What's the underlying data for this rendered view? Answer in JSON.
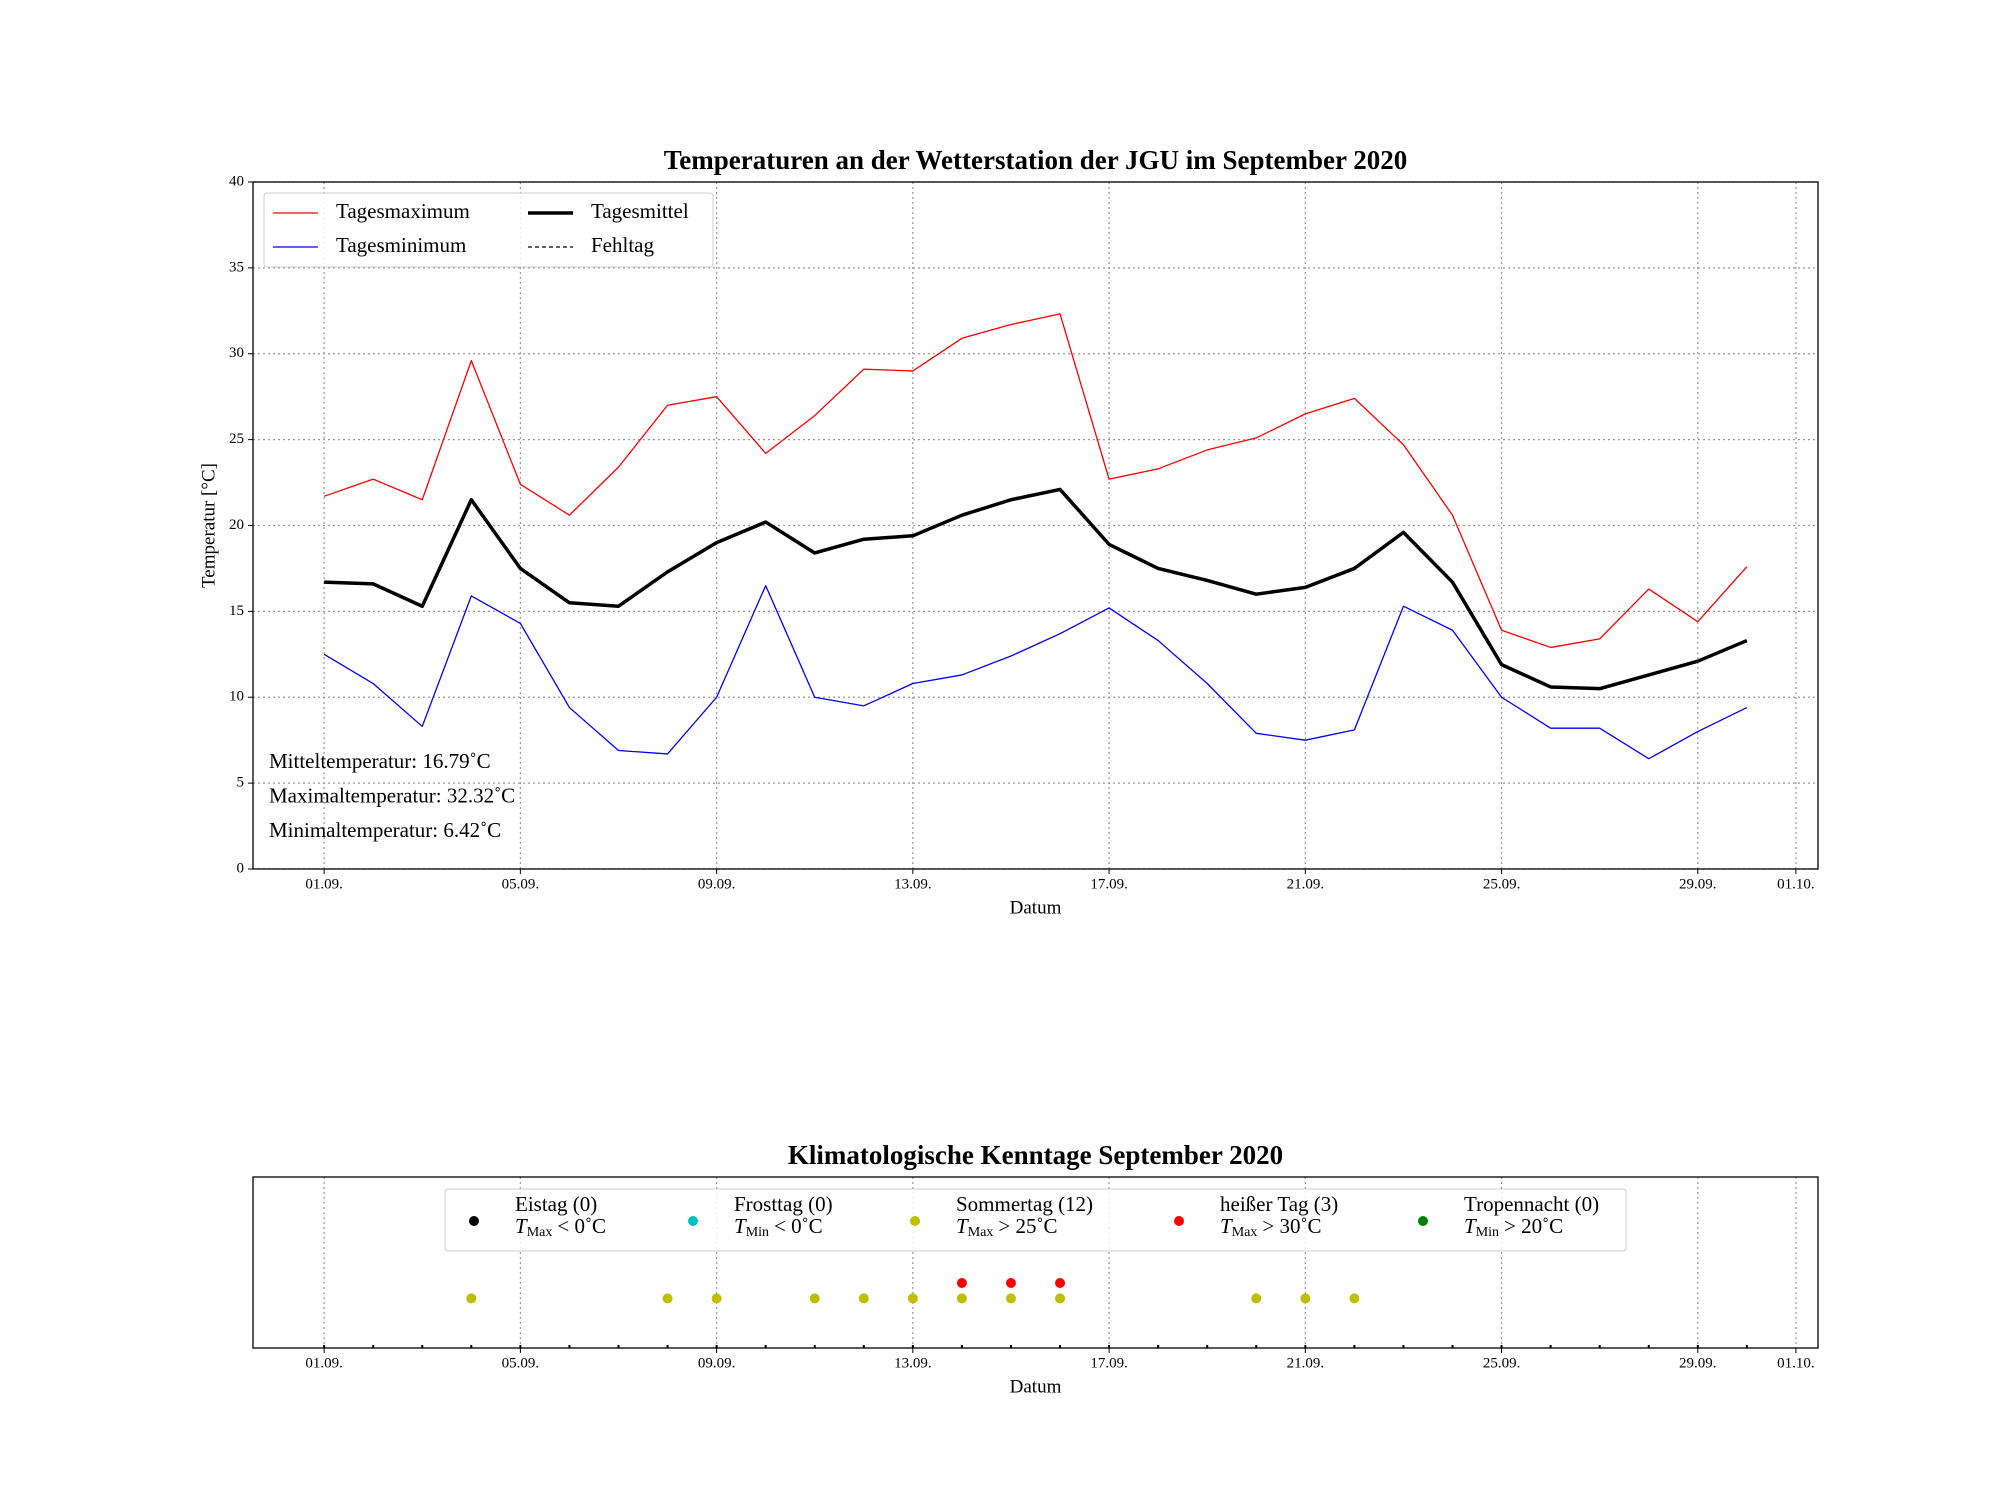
{
  "chart_data": [
    {
      "type": "line",
      "title": "Temperaturen an der Wetterstation der JGU im September 2020",
      "xlabel": "Datum",
      "ylabel": "Temperatur [°C]",
      "x": [
        1,
        2,
        3,
        4,
        5,
        6,
        7,
        8,
        9,
        10,
        11,
        12,
        13,
        14,
        15,
        16,
        17,
        18,
        19,
        20,
        21,
        22,
        23,
        24,
        25,
        26,
        27,
        28,
        29,
        30
      ],
      "series": [
        {
          "name": "Tagesmaximum",
          "color": "#ff0000",
          "width": 1.3,
          "values": [
            21.7,
            22.7,
            21.5,
            29.6,
            22.4,
            20.6,
            23.4,
            27.0,
            27.5,
            24.2,
            26.4,
            29.1,
            29.0,
            30.9,
            31.7,
            32.32,
            22.7,
            23.3,
            24.4,
            25.1,
            26.5,
            27.4,
            24.7,
            20.6,
            13.9,
            12.9,
            13.4,
            16.3,
            14.4,
            17.6
          ]
        },
        {
          "name": "Tagesminimum",
          "color": "#0000ff",
          "width": 1.3,
          "values": [
            12.5,
            10.8,
            8.3,
            15.9,
            14.3,
            9.4,
            6.9,
            6.7,
            10.0,
            16.5,
            10.0,
            9.5,
            10.8,
            11.3,
            12.4,
            13.7,
            15.2,
            13.3,
            10.8,
            7.9,
            7.5,
            8.1,
            15.3,
            13.9,
            10.0,
            8.2,
            8.2,
            6.42,
            8.0,
            9.4
          ]
        },
        {
          "name": "Tagesmittel",
          "color": "#000000",
          "width": 3.5,
          "values": [
            16.7,
            16.6,
            15.3,
            21.5,
            17.5,
            15.5,
            15.3,
            17.3,
            19.0,
            20.2,
            18.4,
            19.2,
            19.4,
            20.6,
            21.5,
            22.1,
            18.9,
            17.5,
            16.8,
            16.0,
            16.4,
            17.5,
            19.6,
            16.7,
            11.9,
            10.6,
            10.5,
            11.3,
            12.1,
            13.3
          ]
        }
      ],
      "legend_extra": [
        {
          "name": "Fehltag",
          "color": "#000000",
          "dash": "4,3"
        }
      ],
      "legend": "upper left",
      "annotations": [
        "Mitteltemperatur: 16.79˚C",
        "Maximaltemperatur: 32.32˚C",
        "Minimaltemperatur: 6.42˚C"
      ],
      "xlim": [
        -0.45,
        31.45
      ],
      "xticks": [
        {
          "value": 1,
          "label": "01.09."
        },
        {
          "value": 5,
          "label": "05.09."
        },
        {
          "value": 9,
          "label": "09.09."
        },
        {
          "value": 13,
          "label": "13.09."
        },
        {
          "value": 17,
          "label": "17.09."
        },
        {
          "value": 21,
          "label": "21.09."
        },
        {
          "value": 25,
          "label": "25.09."
        },
        {
          "value": 29,
          "label": "29.09."
        },
        {
          "value": 31,
          "label": "01.10."
        }
      ],
      "ylim": [
        0,
        40
      ],
      "yticks": [
        0,
        5,
        10,
        15,
        20,
        25,
        30,
        35,
        40
      ],
      "grid": true
    },
    {
      "type": "scatter",
      "title": "Klimatologische Kenntage September 2020",
      "xlabel": "Datum",
      "x": [
        1,
        2,
        3,
        4,
        5,
        6,
        7,
        8,
        9,
        10,
        11,
        12,
        13,
        14,
        15,
        16,
        17,
        18,
        19,
        20,
        21,
        22,
        23,
        24,
        25,
        26,
        27,
        28,
        29,
        30
      ],
      "series": [
        {
          "name": "Eistag (0)",
          "symbol": "T",
          "subscript": "Max",
          "condition": "< 0˚C",
          "color": "#000000",
          "x": [],
          "values": []
        },
        {
          "name": "Frosttag (0)",
          "symbol": "T",
          "subscript": "Min",
          "condition": "< 0˚C",
          "color": "#00bfbf",
          "x": [],
          "values": []
        },
        {
          "name": "Sommertag (12)",
          "symbol": "T",
          "subscript": "Max",
          "condition": "> 25˚C",
          "color": "#bfbf00",
          "x": [
            4,
            8,
            9,
            11,
            12,
            13,
            14,
            15,
            16,
            20,
            21,
            22
          ],
          "values": [
            0.29,
            0.29,
            0.29,
            0.29,
            0.29,
            0.29,
            0.29,
            0.29,
            0.29,
            0.29,
            0.29,
            0.29
          ]
        },
        {
          "name": "heißer Tag (3)",
          "symbol": "T",
          "subscript": "Max",
          "condition": "> 30˚C",
          "color": "#ff0000",
          "x": [
            14,
            15,
            16
          ],
          "values": [
            0.38,
            0.38,
            0.38
          ]
        },
        {
          "name": "Tropennacht (0)",
          "symbol": "T",
          "subscript": "Min",
          "condition": "> 20˚C",
          "color": "#008000",
          "x": [],
          "values": []
        }
      ],
      "xlim": [
        -0.45,
        31.45
      ],
      "xticks": [
        {
          "value": 1,
          "label": "01.09."
        },
        {
          "value": 5,
          "label": "05.09."
        },
        {
          "value": 9,
          "label": "09.09."
        },
        {
          "value": 13,
          "label": "13.09."
        },
        {
          "value": 17,
          "label": "17.09."
        },
        {
          "value": 21,
          "label": "21.09."
        },
        {
          "value": 25,
          "label": "25.09."
        },
        {
          "value": 29,
          "label": "29.09."
        },
        {
          "value": 31,
          "label": "01.10."
        }
      ],
      "ylim": [
        0,
        1
      ],
      "grid": true
    }
  ]
}
